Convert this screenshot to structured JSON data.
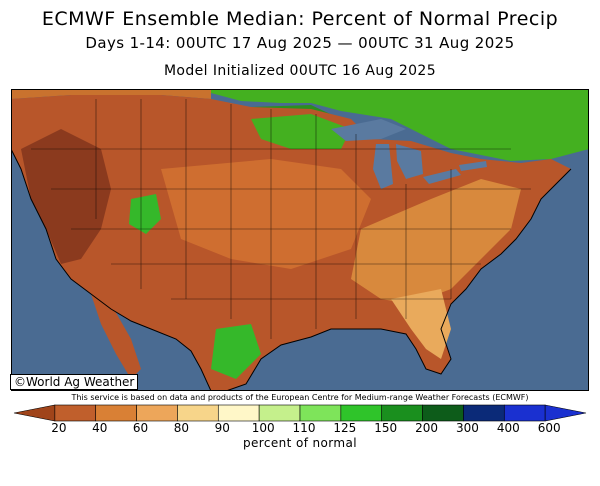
{
  "header": {
    "title": "ECMWF Ensemble Median: Percent of Normal Precip",
    "period": "Days 1-14: 00UTC 17 Aug 2025 — 00UTC 31 Aug 2025",
    "init": "Model Initialized 00UTC 16 Aug 2025"
  },
  "map": {
    "credit": "©World Ag Weather",
    "disclaimer": "This service is based on data and products of the European Centre for Medium-range Weather Forecasts (ECMWF)",
    "colors": {
      "ocean": "#4a6b92",
      "lake": "#5a7aa0",
      "canada": "#44b020",
      "mexico": "#c86a2c",
      "dark_brown": "#8b3a1e",
      "brown": "#b8562a",
      "orange": "#d8893d",
      "light_orange": "#e9aa5c",
      "tan": "#f3cf86",
      "green": "#35b82a"
    }
  },
  "legend": {
    "tick_labels": [
      "20",
      "40",
      "60",
      "80",
      "90",
      "100",
      "110",
      "125",
      "150",
      "200",
      "300",
      "400",
      "600"
    ],
    "bin_colors": [
      "#a0441a",
      "#c05f2c",
      "#d98035",
      "#eda65a",
      "#f7d58a",
      "#fff7c8",
      "#c5f08c",
      "#7ee45a",
      "#2fc42a",
      "#1a8f1e",
      "#0d5c1a",
      "#0b2a78",
      "#1a30d0"
    ],
    "unit_label": "percent of normal"
  }
}
